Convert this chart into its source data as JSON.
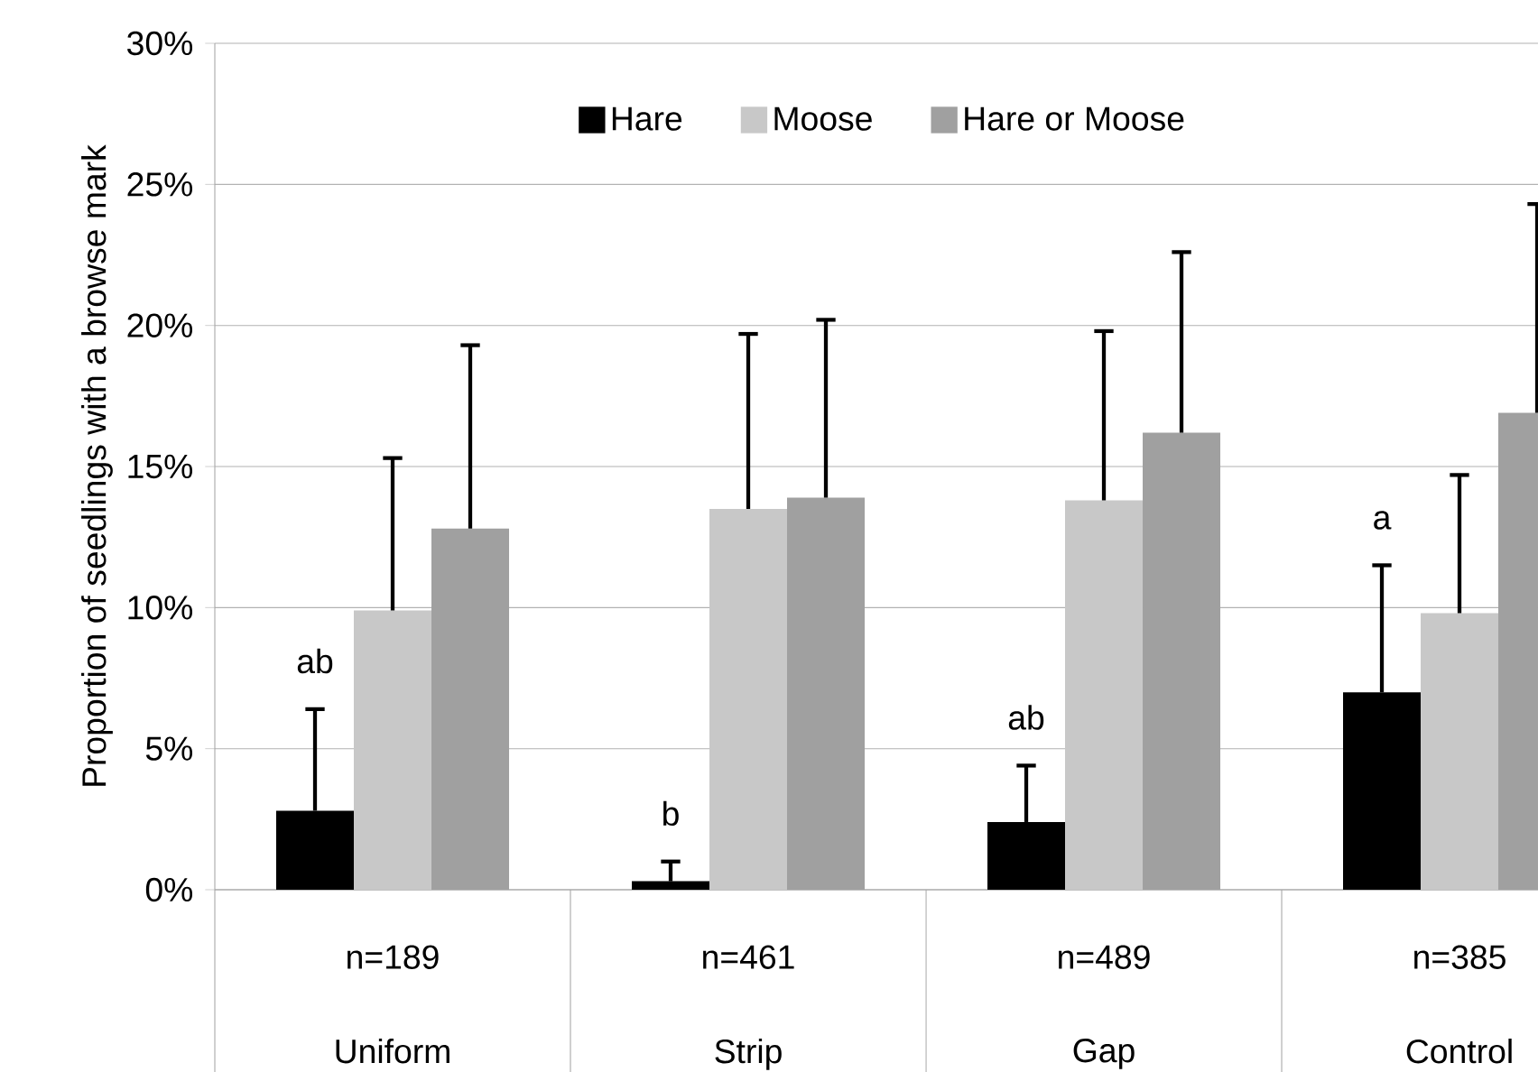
{
  "chart_data": {
    "type": "bar",
    "ylabel": "Proportion of seedlings with a browse mark",
    "categories": [
      "Uniform",
      "Strip",
      "Gap",
      "Control"
    ],
    "series": [
      {
        "name": "Hare",
        "color": "#000000",
        "values": [
          2.8,
          0.3,
          2.4,
          7.0
        ],
        "errors": [
          [
            2.8,
            6.4
          ],
          [
            0.3,
            1.0
          ],
          [
            2.4,
            4.4
          ],
          [
            7.0,
            11.5
          ]
        ]
      },
      {
        "name": "Moose",
        "color": "#c8c8c8",
        "values": [
          9.9,
          13.5,
          13.8,
          9.8
        ],
        "errors": [
          [
            9.9,
            15.3
          ],
          [
            13.5,
            19.7
          ],
          [
            13.8,
            19.8
          ],
          [
            9.8,
            14.7
          ]
        ]
      },
      {
        "name": "Hare or Moose",
        "color": "#a0a0a0",
        "values": [
          12.8,
          13.9,
          16.2,
          16.9
        ],
        "errors": [
          [
            12.8,
            19.3
          ],
          [
            13.9,
            20.2
          ],
          [
            16.2,
            22.6
          ],
          [
            16.9,
            24.3
          ]
        ]
      }
    ],
    "ylim": [
      0,
      30
    ],
    "yticks": [
      {
        "value": 0,
        "label": "0%"
      },
      {
        "value": 5,
        "label": "5%"
      },
      {
        "value": 10,
        "label": "10%"
      },
      {
        "value": 15,
        "label": "15%"
      },
      {
        "value": 20,
        "label": "20%"
      },
      {
        "value": 25,
        "label": "25%"
      },
      {
        "value": 30,
        "label": "30%"
      }
    ],
    "grid": "y",
    "legend": "top",
    "annotations": [
      "ab",
      "b",
      "ab",
      "a",
      "n=189",
      "n=461",
      "n=489",
      "n=385"
    ]
  }
}
